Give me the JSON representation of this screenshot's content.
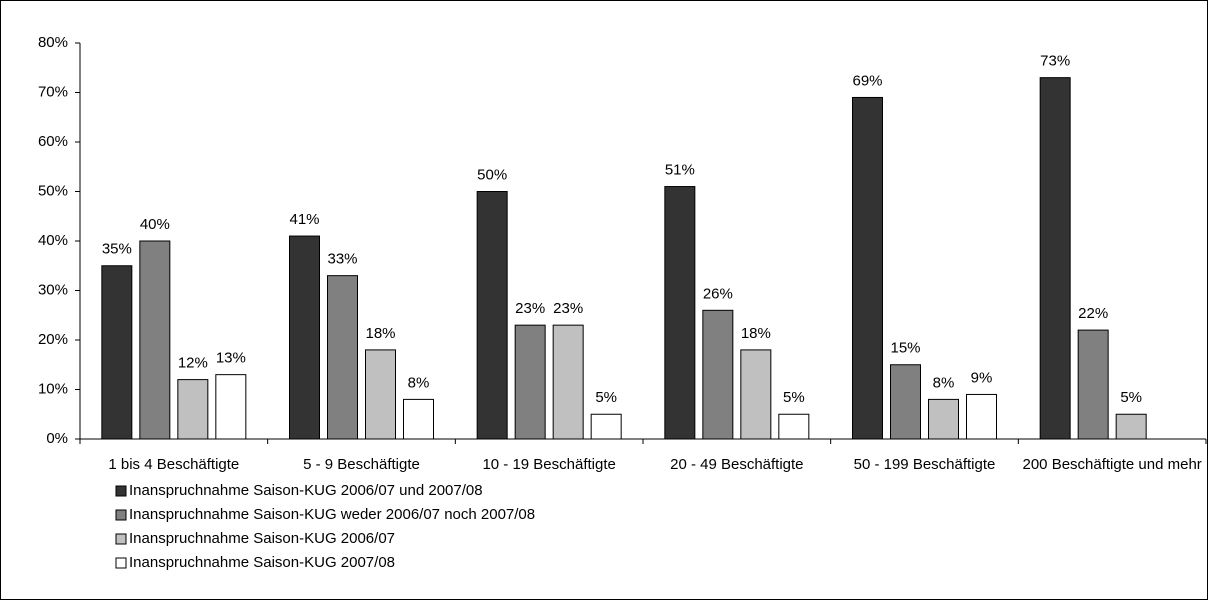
{
  "chart_data": {
    "type": "bar",
    "categories": [
      "1 bis 4 Beschäftigte",
      "5 - 9  Beschäftigte",
      "10 - 19  Beschäftigte",
      "20 - 49  Beschäftigte",
      "50 - 199 Beschäftigte",
      "200 Beschäftigte und mehr"
    ],
    "series": [
      {
        "name": "Inanspruchnahme Saison-KUG 2006/07 und 2007/08",
        "color": "#333333",
        "values": [
          35,
          41,
          50,
          51,
          69,
          73
        ],
        "value_labels": [
          "35%",
          "41%",
          "50%",
          "51%",
          "69%",
          "73%"
        ]
      },
      {
        "name": "Inanspruchnahme Saison-KUG weder 2006/07 noch 2007/08",
        "color": "#808080",
        "values": [
          40,
          33,
          23,
          26,
          15,
          22
        ],
        "value_labels": [
          "40%",
          "33%",
          "23%",
          "26%",
          "15%",
          "22%"
        ]
      },
      {
        "name": "Inanspruchnahme Saison-KUG 2006/07",
        "color": "#c0c0c0",
        "values": [
          12,
          18,
          23,
          18,
          8,
          5
        ],
        "value_labels": [
          "12%",
          "18%",
          "23%",
          "18%",
          "8%",
          "5%"
        ]
      },
      {
        "name": "Inanspruchnahme Saison-KUG 2007/08",
        "color": "#ffffff",
        "values": [
          13,
          8,
          5,
          5,
          9,
          null
        ],
        "value_labels": [
          "13%",
          "8%",
          "5%",
          "5%",
          "9%",
          null
        ]
      }
    ],
    "ylim": [
      0,
      80
    ],
    "yticks": [
      {
        "value": 0,
        "label": "0%"
      },
      {
        "value": 10,
        "label": "10%"
      },
      {
        "value": 20,
        "label": "20%"
      },
      {
        "value": 30,
        "label": "30%"
      },
      {
        "value": 40,
        "label": "40%"
      },
      {
        "value": 50,
        "label": "50%"
      },
      {
        "value": 60,
        "label": "60%"
      },
      {
        "value": 70,
        "label": "70%"
      },
      {
        "value": 80,
        "label": "80%"
      }
    ],
    "legend": "bottom-left"
  }
}
